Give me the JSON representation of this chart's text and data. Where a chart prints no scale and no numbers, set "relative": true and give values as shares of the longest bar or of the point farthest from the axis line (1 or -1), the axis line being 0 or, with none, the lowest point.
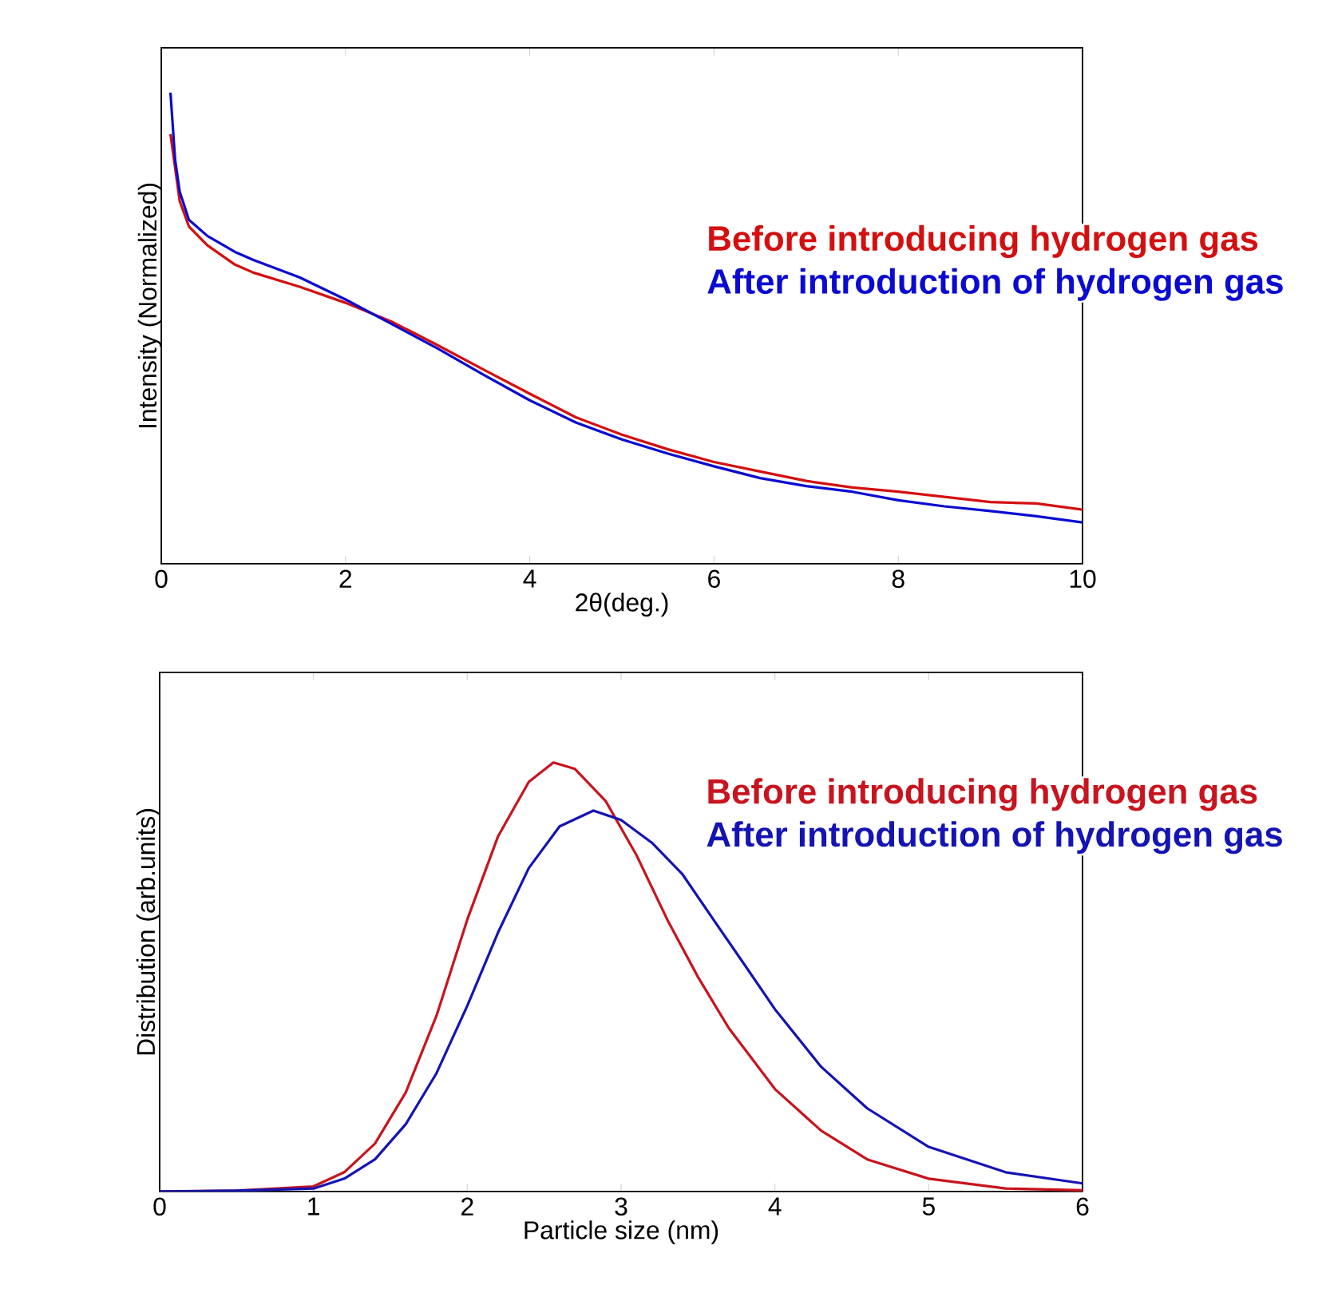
{
  "chart_data": [
    {
      "type": "line",
      "xlabel": "2θ(deg.)",
      "ylabel": "Intensity (Normalized)",
      "relative": true,
      "xlim": [
        0,
        10
      ],
      "xticks": [
        0,
        2,
        4,
        6,
        8,
        10
      ],
      "series": [
        {
          "name": "Before introducing hydrogen gas",
          "color": "#d40f0f",
          "x": [
            0.1,
            0.2,
            0.3,
            0.5,
            0.8,
            1,
            1.5,
            2,
            2.5,
            3,
            3.5,
            4,
            4.5,
            5,
            5.5,
            6,
            6.5,
            7,
            7.5,
            8,
            8.5,
            9,
            9.5,
            10
          ],
          "values": [
            0.912,
            0.77,
            0.716,
            0.676,
            0.635,
            0.618,
            0.588,
            0.554,
            0.514,
            0.464,
            0.412,
            0.361,
            0.311,
            0.274,
            0.243,
            0.216,
            0.196,
            0.176,
            0.162,
            0.153,
            0.142,
            0.131,
            0.128,
            0.115
          ]
        },
        {
          "name": "After introduction of hydrogen gas",
          "color": "#0a0ad2",
          "x": [
            0.1,
            0.15,
            0.2,
            0.3,
            0.5,
            0.8,
            1,
            1.5,
            2,
            2.5,
            3,
            3.5,
            4,
            4.5,
            5,
            5.5,
            6,
            6.5,
            7,
            7.5,
            8,
            8.5,
            9,
            9.5,
            10
          ],
          "values": [
            1.0,
            0.858,
            0.79,
            0.73,
            0.696,
            0.662,
            0.645,
            0.608,
            0.561,
            0.509,
            0.457,
            0.401,
            0.347,
            0.3,
            0.264,
            0.234,
            0.207,
            0.182,
            0.165,
            0.153,
            0.135,
            0.122,
            0.112,
            0.101,
            0.088
          ]
        }
      ]
    },
    {
      "type": "line",
      "xlabel": "Particle size (nm)",
      "ylabel": "Distribution (arb.units)",
      "relative": true,
      "xlim": [
        0,
        6
      ],
      "xticks": [
        0,
        1,
        2,
        3,
        4,
        5,
        6
      ],
      "series": [
        {
          "name": "Before introducing hydrogen gas",
          "color": "#c8141e",
          "x": [
            0,
            0.5,
            1,
            1.2,
            1.4,
            1.6,
            1.8,
            2,
            2.2,
            2.4,
            2.56,
            2.7,
            2.9,
            3.1,
            3.3,
            3.5,
            3.7,
            4,
            4.3,
            4.6,
            5,
            5.5,
            6
          ],
          "values": [
            0,
            0.002,
            0.012,
            0.045,
            0.112,
            0.231,
            0.41,
            0.634,
            0.828,
            0.955,
            1.0,
            0.985,
            0.91,
            0.784,
            0.634,
            0.5,
            0.381,
            0.239,
            0.142,
            0.075,
            0.03,
            0.007,
            0.003
          ]
        },
        {
          "name": "After introduction of hydrogen gas",
          "color": "#1414b4",
          "x": [
            0,
            0.5,
            1,
            1.2,
            1.4,
            1.6,
            1.8,
            2,
            2.2,
            2.4,
            2.6,
            2.82,
            3,
            3.2,
            3.4,
            3.6,
            3.8,
            4,
            4.3,
            4.6,
            5,
            5.5,
            6
          ],
          "values": [
            0,
            0.002,
            0.007,
            0.03,
            0.075,
            0.157,
            0.276,
            0.433,
            0.604,
            0.754,
            0.851,
            0.888,
            0.866,
            0.813,
            0.739,
            0.634,
            0.53,
            0.425,
            0.291,
            0.194,
            0.104,
            0.045,
            0.019
          ]
        }
      ]
    }
  ]
}
